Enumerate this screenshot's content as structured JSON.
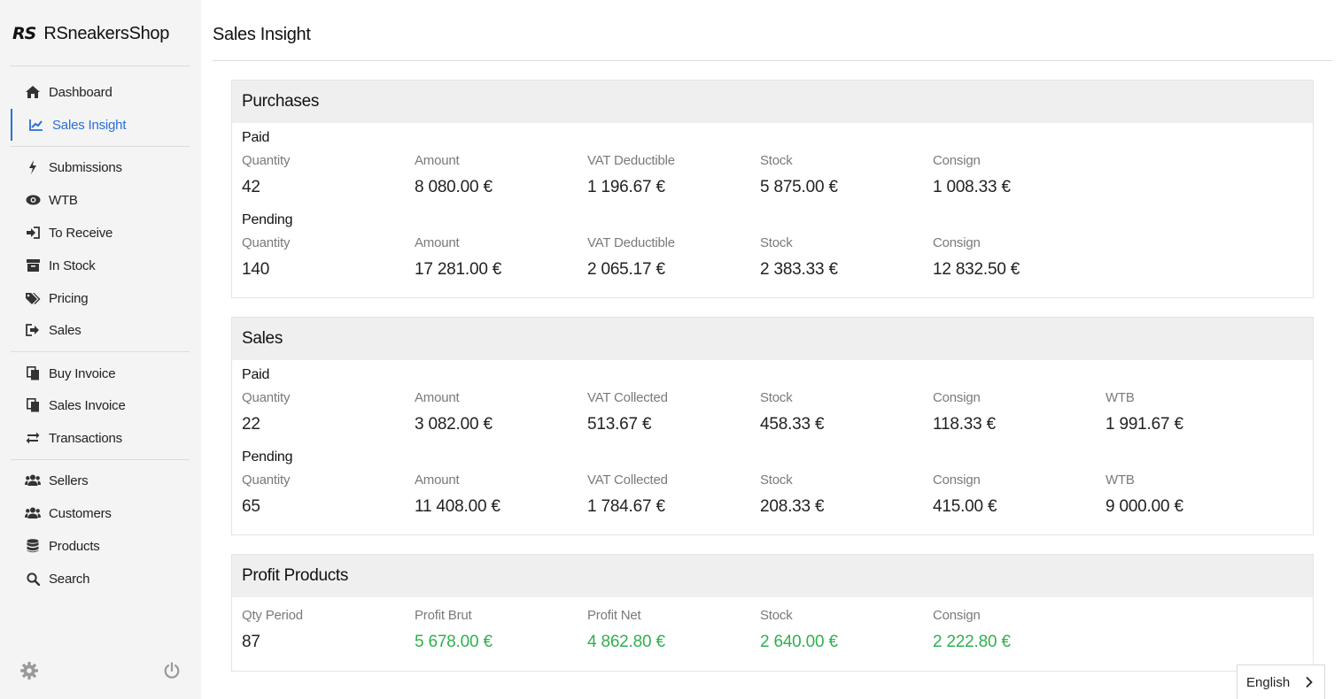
{
  "brand": {
    "logo": "RS",
    "name": "RSneakersShop"
  },
  "nav": {
    "items": [
      {
        "label": "Dashboard",
        "icon": "home-icon"
      },
      {
        "label": "Sales Insight",
        "icon": "chart-line-icon",
        "active": true
      },
      {
        "label": "Submissions",
        "icon": "bolt-icon"
      },
      {
        "label": "WTB",
        "icon": "eye-icon"
      },
      {
        "label": "To Receive",
        "icon": "sign-in-icon"
      },
      {
        "label": "In Stock",
        "icon": "archive-icon"
      },
      {
        "label": "Pricing",
        "icon": "tags-icon"
      },
      {
        "label": "Sales",
        "icon": "sign-out-icon"
      },
      {
        "label": "Buy Invoice",
        "icon": "copy-icon"
      },
      {
        "label": "Sales Invoice",
        "icon": "copy-icon"
      },
      {
        "label": "Transactions",
        "icon": "exchange-icon"
      },
      {
        "label": "Sellers",
        "icon": "users-icon"
      },
      {
        "label": "Customers",
        "icon": "users-icon"
      },
      {
        "label": "Products",
        "icon": "database-icon"
      },
      {
        "label": "Search",
        "icon": "search-icon"
      }
    ]
  },
  "footer": {
    "settings_icon": "gear-icon",
    "logout_icon": "power-icon"
  },
  "page": {
    "title": "Sales Insight"
  },
  "purchases": {
    "title": "Purchases",
    "paid": {
      "title": "Paid",
      "cells": [
        {
          "label": "Quantity",
          "value": "42"
        },
        {
          "label": "Amount",
          "value": "8 080.00 €"
        },
        {
          "label": "VAT Deductible",
          "value": "1 196.67 €"
        },
        {
          "label": "Stock",
          "value": "5 875.00 €"
        },
        {
          "label": "Consign",
          "value": "1 008.33 €"
        }
      ]
    },
    "pending": {
      "title": "Pending",
      "cells": [
        {
          "label": "Quantity",
          "value": "140"
        },
        {
          "label": "Amount",
          "value": "17 281.00 €"
        },
        {
          "label": "VAT Deductible",
          "value": "2 065.17 €"
        },
        {
          "label": "Stock",
          "value": "2 383.33 €"
        },
        {
          "label": "Consign",
          "value": "12 832.50 €"
        }
      ]
    }
  },
  "sales": {
    "title": "Sales",
    "paid": {
      "title": "Paid",
      "cells": [
        {
          "label": "Quantity",
          "value": "22"
        },
        {
          "label": "Amount",
          "value": "3 082.00 €"
        },
        {
          "label": "VAT Collected",
          "value": "513.67 €"
        },
        {
          "label": "Stock",
          "value": "458.33 €"
        },
        {
          "label": "Consign",
          "value": "118.33 €"
        },
        {
          "label": "WTB",
          "value": "1 991.67 €"
        }
      ]
    },
    "pending": {
      "title": "Pending",
      "cells": [
        {
          "label": "Quantity",
          "value": "65"
        },
        {
          "label": "Amount",
          "value": "11 408.00 €"
        },
        {
          "label": "VAT Collected",
          "value": "1 784.67 €"
        },
        {
          "label": "Stock",
          "value": "208.33 €"
        },
        {
          "label": "Consign",
          "value": "415.00 €"
        },
        {
          "label": "WTB",
          "value": "9 000.00 €"
        }
      ]
    }
  },
  "profit": {
    "title": "Profit Products",
    "cells": [
      {
        "label": "Qty Period",
        "value": "87"
      },
      {
        "label": "Profit Brut",
        "value": "5 678.00 €"
      },
      {
        "label": "Profit Net",
        "value": "4 862.80 €"
      },
      {
        "label": "Stock",
        "value": "2 640.00 €"
      },
      {
        "label": "Consign",
        "value": "2 222.80 €"
      }
    ]
  },
  "colors": {
    "accent": "#2a6fd6",
    "positive": "#2fb04f"
  },
  "language": {
    "selected": "English",
    "icon": "chevron-right-icon"
  }
}
